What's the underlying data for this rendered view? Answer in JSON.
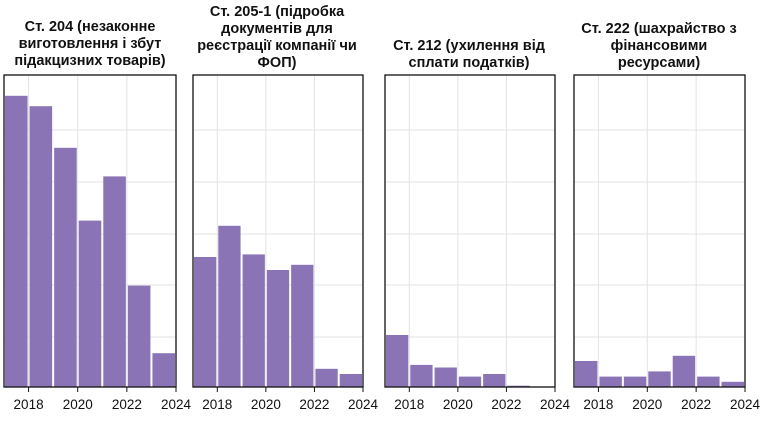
{
  "colors": {
    "bar": "#8a74b6",
    "grid": "#e3e3e3",
    "frame": "#111111",
    "text": "#111111"
  },
  "chart_data": [
    {
      "type": "bar",
      "title": "Ст. 204 (незаконне виготовлення і збут підакцизних товарів)",
      "x": [
        2017,
        2018,
        2019,
        2020,
        2021,
        2022,
        2023
      ],
      "values": [
        112,
        108,
        92,
        64,
        81,
        39,
        13
      ],
      "xlim": [
        2017,
        2024
      ],
      "ylim": [
        0,
        120
      ],
      "xticks": [
        "2018",
        "2020",
        "2022",
        "2024"
      ],
      "xlabel": "",
      "ylabel": "",
      "grid": true
    },
    {
      "type": "bar",
      "title": "Ст. 205-1 (підробка документів для реєстрації компанії чи ФОП)",
      "x": [
        2017,
        2018,
        2019,
        2020,
        2021,
        2022,
        2023
      ],
      "values": [
        50,
        62,
        51,
        45,
        47,
        7,
        5
      ],
      "xlim": [
        2017,
        2024
      ],
      "ylim": [
        0,
        120
      ],
      "xticks": [
        "2018",
        "2020",
        "2022",
        "2024"
      ],
      "xlabel": "",
      "ylabel": "",
      "grid": true
    },
    {
      "type": "bar",
      "title": "Ст. 212 (ухилення від сплати податків)",
      "x": [
        2017,
        2018,
        2019,
        2020,
        2021,
        2022,
        2023
      ],
      "values": [
        20,
        8.5,
        7.5,
        4,
        5,
        0.5,
        0
      ],
      "xlim": [
        2017,
        2024
      ],
      "ylim": [
        0,
        120
      ],
      "xticks": [
        "2018",
        "2020",
        "2022",
        "2024"
      ],
      "xlabel": "",
      "ylabel": "",
      "grid": true
    },
    {
      "type": "bar",
      "title": "Ст. 222 (шахрайство з фінансовими ресурсами)",
      "x": [
        2017,
        2018,
        2019,
        2020,
        2021,
        2022,
        2023
      ],
      "values": [
        10,
        4,
        4,
        6,
        12,
        4,
        2
      ],
      "xlim": [
        2017,
        2024
      ],
      "ylim": [
        0,
        120
      ],
      "xticks": [
        "2018",
        "2020",
        "2022",
        "2024"
      ],
      "xlabel": "",
      "ylabel": "",
      "grid": true
    }
  ]
}
